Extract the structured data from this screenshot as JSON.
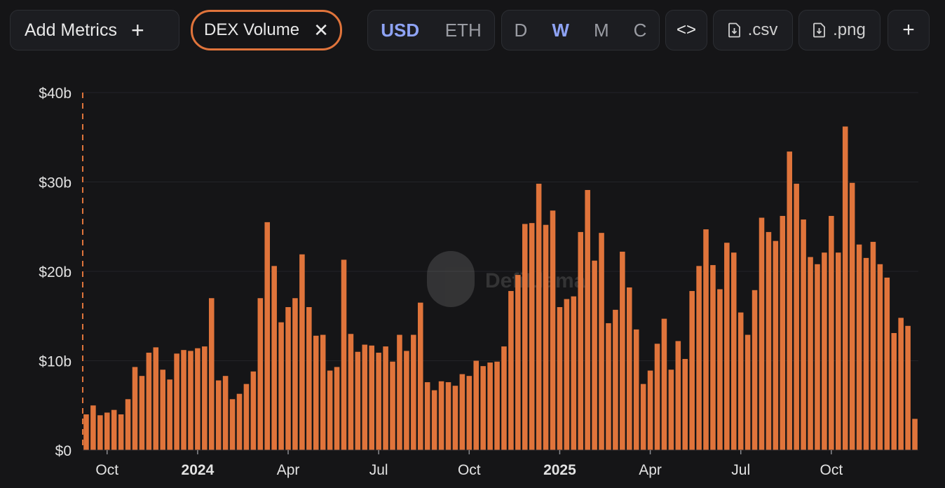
{
  "toolbar": {
    "add_metrics_label": "Add Metrics",
    "add_icon": "plus-icon",
    "metric_chip_label": "DEX Volume",
    "remove_icon": "close-icon",
    "currency_options": [
      "USD",
      "ETH"
    ],
    "currency_selected": "USD",
    "period_options": [
      "D",
      "W",
      "M",
      "C"
    ],
    "period_selected": "W",
    "embed_label": "<>",
    "csv_label": ".csv",
    "png_label": ".png",
    "more_label": "+",
    "file_icon": "download-file-icon"
  },
  "watermark": {
    "text": "DefiLlama",
    "icon": "llama-logo-icon"
  },
  "colors": {
    "bar": "#e0743b",
    "accent": "#8ea3f5",
    "background": "#151517"
  },
  "chart_data": {
    "type": "bar",
    "title": "",
    "xlabel": "",
    "ylabel": "",
    "ylim": [
      0,
      40
    ],
    "y_unit": "billions USD",
    "y_ticks": [
      "$0",
      "$10b",
      "$20b",
      "$30b",
      "$40b"
    ],
    "y_tick_values": [
      0,
      10,
      20,
      30,
      40
    ],
    "x_ticks": [
      {
        "label": "Oct",
        "index": 3,
        "bold": false
      },
      {
        "label": "2024",
        "index": 16,
        "bold": true
      },
      {
        "label": "Apr",
        "index": 29,
        "bold": false
      },
      {
        "label": "Jul",
        "index": 42,
        "bold": false
      },
      {
        "label": "Oct",
        "index": 55,
        "bold": false
      },
      {
        "label": "2025",
        "index": 68,
        "bold": true
      },
      {
        "label": "Apr",
        "index": 81,
        "bold": false
      },
      {
        "label": "Jul",
        "index": 94,
        "bold": false
      },
      {
        "label": "Oct",
        "index": 107,
        "bold": false
      }
    ],
    "grid": true,
    "legend": "none",
    "values": [
      4.0,
      5.0,
      3.9,
      4.2,
      4.5,
      4.0,
      5.7,
      9.3,
      8.3,
      10.9,
      11.5,
      9.0,
      7.9,
      10.8,
      11.2,
      11.1,
      11.4,
      11.6,
      17.0,
      7.8,
      8.3,
      5.7,
      6.3,
      7.4,
      8.8,
      17.0,
      25.5,
      20.6,
      14.3,
      16.0,
      17.0,
      21.9,
      16.0,
      12.8,
      12.9,
      8.9,
      9.3,
      21.3,
      13.0,
      11.0,
      11.8,
      11.7,
      10.9,
      11.6,
      9.9,
      12.9,
      11.1,
      12.9,
      16.5,
      7.6,
      6.7,
      7.7,
      7.6,
      7.2,
      8.5,
      8.3,
      10.0,
      9.4,
      9.8,
      9.9,
      11.6,
      17.8,
      19.6,
      25.3,
      25.4,
      29.8,
      25.2,
      26.8,
      16.0,
      16.9,
      17.2,
      24.4,
      29.1,
      21.2,
      24.3,
      14.2,
      15.7,
      22.2,
      18.2,
      13.5,
      7.4,
      8.9,
      11.9,
      14.7,
      9.0,
      12.2,
      10.2,
      17.8,
      20.6,
      24.7,
      20.7,
      18.0,
      23.2,
      22.1,
      15.4,
      12.9,
      17.9,
      26.0,
      24.4,
      23.4,
      26.2,
      33.4,
      29.8,
      25.8,
      21.6,
      20.8,
      22.1,
      26.2,
      22.1,
      36.2,
      29.9,
      23.0,
      21.5,
      23.3,
      20.8,
      19.3,
      13.1,
      14.8,
      13.9,
      3.5
    ]
  }
}
